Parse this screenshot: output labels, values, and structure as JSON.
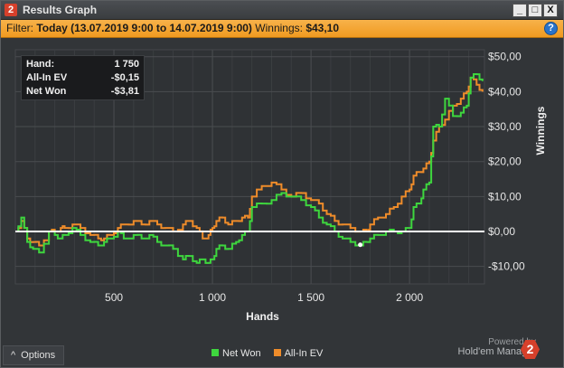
{
  "window": {
    "title": "Results Graph",
    "app_badge": "2",
    "buttons": [
      "_",
      "□",
      "X"
    ]
  },
  "filter": {
    "label": "Filter:",
    "value": "Today (13.07.2019 9:00 to 14.07.2019 9:00)",
    "winnings_label": "Winnings:",
    "winnings_value": "$43,10",
    "help": "?"
  },
  "tooltip": {
    "rows": [
      {
        "label": "Hand:",
        "value": "1 750"
      },
      {
        "label": "All-In EV",
        "value": "-$0,15"
      },
      {
        "label": "Net Won",
        "value": "-$3,81"
      }
    ]
  },
  "footer": {
    "options_label": "Options",
    "caret": "^"
  },
  "brand": {
    "powered_by": "Powered by",
    "name": "Hold'em Manager",
    "logo": "2"
  },
  "colors": {
    "net_won": "#3ed63e",
    "all_in_ev": "#ef8c2a",
    "zero_line": "#ffffff",
    "grid": "#4a4d50",
    "plot_bg": "#2f3235"
  },
  "chart_data": {
    "type": "line",
    "xlabel": "Hands",
    "ylabel": "Winnings",
    "xlim": [
      0,
      2380
    ],
    "ylim": [
      -15,
      52
    ],
    "x_ticks": [
      500,
      1000,
      1500,
      2000
    ],
    "x_tick_labels": [
      "500",
      "1 000",
      "1 500",
      "2 000"
    ],
    "y_ticks": [
      -10,
      0,
      10,
      20,
      30,
      40,
      50
    ],
    "y_tick_labels": [
      "-$10,00",
      "$0,00",
      "$10,00",
      "$20,00",
      "$30,00",
      "$40,00",
      "$50,00"
    ],
    "legend_position": "bottom-center",
    "grid": true,
    "zero_line": 0,
    "highlight_point": {
      "x": 1750,
      "y": -3.81
    },
    "series": [
      {
        "name": "Net Won",
        "x": [
          0,
          30,
          60,
          90,
          120,
          170,
          200,
          230,
          250,
          290,
          330,
          380,
          420,
          450,
          480,
          520,
          550,
          600,
          640,
          680,
          720,
          760,
          800,
          850,
          880,
          920,
          950,
          980,
          1000,
          1020,
          1050,
          1080,
          1120,
          1150,
          1180,
          1200,
          1250,
          1300,
          1350,
          1400,
          1450,
          1500,
          1540,
          1580,
          1620,
          1660,
          1700,
          1750,
          1780,
          1800,
          1840,
          1880,
          1920,
          1960,
          2000,
          2020,
          2050,
          2070,
          2100,
          2120,
          2150,
          2180,
          2220,
          2260,
          2290,
          2310,
          2340,
          2370
        ],
        "values": [
          0,
          4,
          -3,
          -5,
          -6,
          0,
          -1,
          -2,
          -1,
          1,
          -1,
          -3,
          -4,
          -3,
          -2,
          0,
          -2,
          -1,
          -2,
          -1,
          -3,
          -4,
          -5,
          -8,
          -7,
          -9,
          -8,
          -9,
          -8,
          -5,
          -4,
          -5,
          -3,
          -1,
          0,
          7,
          8,
          9,
          11,
          10,
          9,
          7,
          4,
          2,
          0,
          -2,
          -3,
          -4,
          -3,
          -2,
          -1,
          0,
          0,
          0,
          1,
          7,
          8,
          12,
          14,
          30,
          30,
          38,
          33,
          34,
          36,
          44,
          45,
          43
        ]
      },
      {
        "name": "All-In EV",
        "x": [
          0,
          30,
          60,
          90,
          120,
          170,
          200,
          230,
          250,
          290,
          330,
          380,
          420,
          450,
          480,
          520,
          550,
          600,
          640,
          680,
          720,
          760,
          800,
          850,
          880,
          920,
          950,
          980,
          1000,
          1020,
          1050,
          1080,
          1120,
          1150,
          1180,
          1200,
          1250,
          1300,
          1350,
          1400,
          1450,
          1500,
          1540,
          1580,
          1620,
          1660,
          1700,
          1750,
          1780,
          1800,
          1840,
          1880,
          1920,
          1960,
          2000,
          2020,
          2050,
          2070,
          2100,
          2120,
          2150,
          2180,
          2220,
          2260,
          2290,
          2310,
          2340,
          2370
        ],
        "values": [
          0,
          3,
          -2,
          -3,
          -4,
          0,
          0,
          1,
          1,
          2,
          1,
          -1,
          -2,
          -2,
          -1,
          1,
          2,
          3,
          2,
          3,
          2,
          1,
          0,
          2,
          3,
          1,
          -2,
          -1,
          1,
          3,
          4,
          2,
          3,
          4,
          4,
          10,
          13,
          14,
          12,
          10,
          11,
          9,
          8,
          5,
          3,
          2,
          1,
          0,
          0,
          2,
          4,
          5,
          7,
          10,
          12,
          16,
          17,
          18,
          20,
          26,
          30,
          32,
          36,
          38,
          40,
          44,
          42,
          40
        ]
      }
    ]
  }
}
